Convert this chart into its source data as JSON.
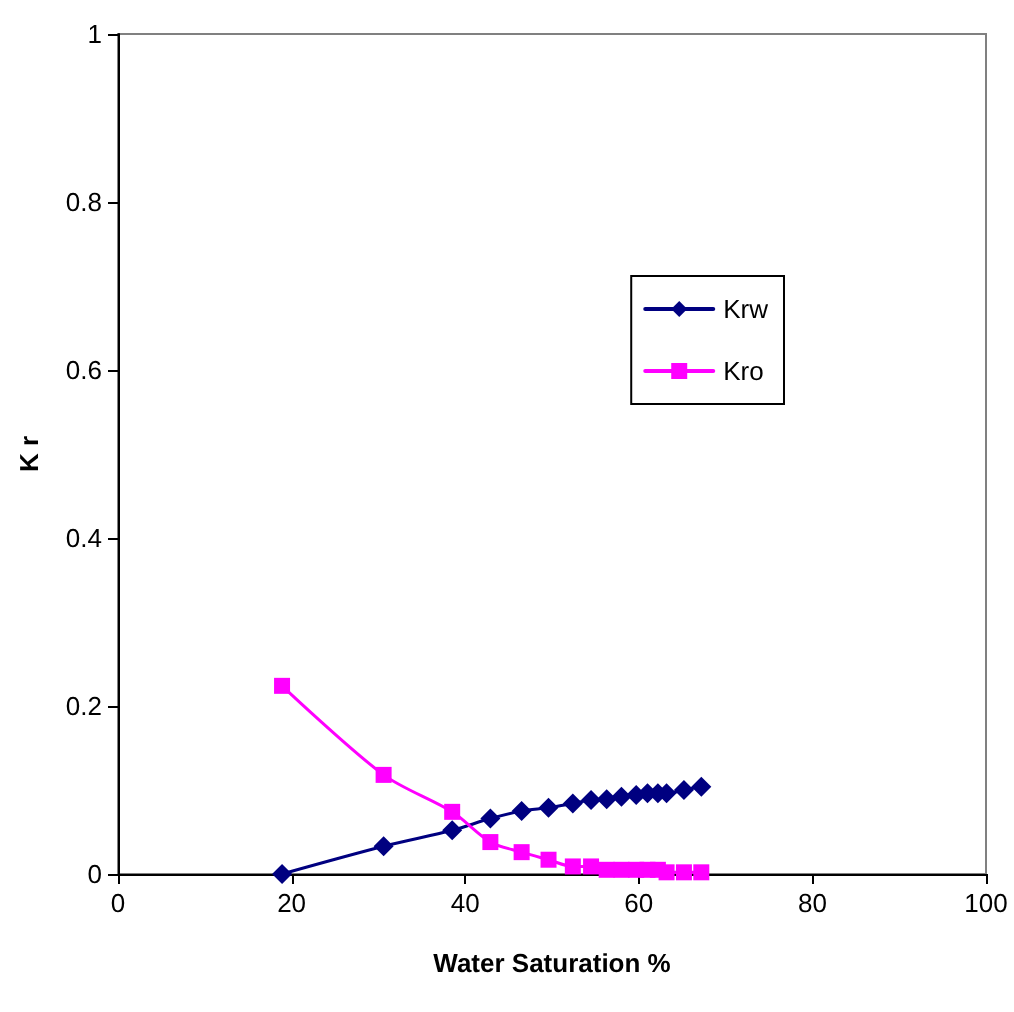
{
  "chart_data": {
    "type": "line",
    "xlabel": "Water Saturation %",
    "ylabel": "K r",
    "x": [
      18.9,
      30.6,
      38.5,
      42.9,
      46.5,
      49.6,
      52.4,
      54.5,
      56.3,
      58.0,
      59.7,
      61.0,
      62.2,
      63.2,
      65.2,
      67.2
    ],
    "series": [
      {
        "name": "Krw",
        "color": "#000080",
        "marker": "diamond",
        "values": [
          0,
          0.033,
          0.052,
          0.066,
          0.075,
          0.079,
          0.084,
          0.088,
          0.089,
          0.092,
          0.094,
          0.096,
          0.096,
          0.096,
          0.1,
          0.104
        ]
      },
      {
        "name": "Kro",
        "color": "#ff00ff",
        "marker": "square",
        "values": [
          0.224,
          0.118,
          0.074,
          0.038,
          0.026,
          0.017,
          0.009,
          0.009,
          0.005,
          0.005,
          0.005,
          0.005,
          0.005,
          0.002,
          0.002,
          0.002
        ]
      }
    ],
    "xlim": [
      0,
      100
    ],
    "xticks": [
      0,
      20,
      40,
      60,
      80,
      100
    ],
    "ylim": [
      0,
      1
    ],
    "yticks": [
      0,
      0.2,
      0.4,
      0.6,
      0.8,
      1
    ],
    "grid": false,
    "legend": "right",
    "line_style": "solid"
  }
}
